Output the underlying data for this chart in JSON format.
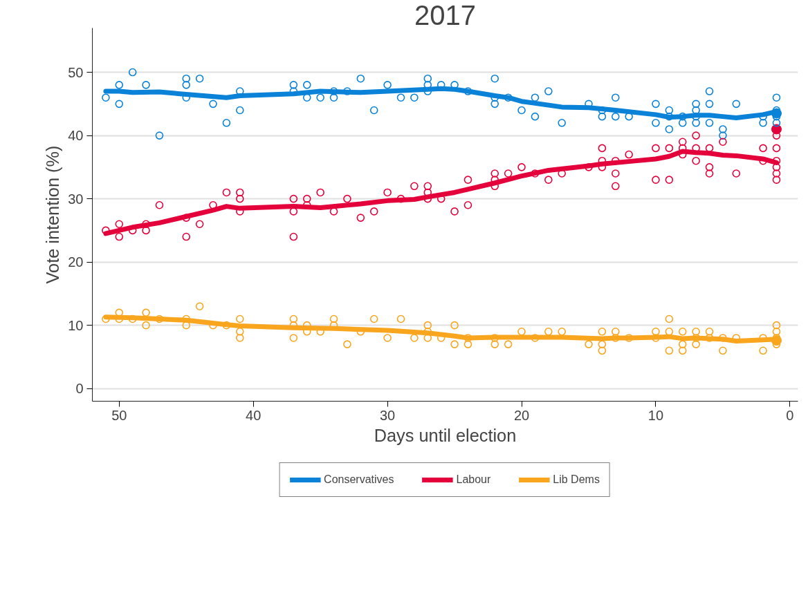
{
  "chart_data": {
    "type": "line",
    "title": "2017",
    "xlabel": "Days until election",
    "ylabel": "Vote intention (%)",
    "xlim": [
      52,
      -0.6
    ],
    "xticks": [
      50,
      40,
      30,
      20,
      10,
      0
    ],
    "ylim": [
      -2,
      57
    ],
    "yticks": [
      0,
      10,
      20,
      30,
      40,
      50
    ],
    "grid": "y",
    "legend": "bottom",
    "marker": "circle",
    "line_style": "solid",
    "series": [
      {
        "name": "Conservatives",
        "color": "#0a82d8",
        "marker": "none",
        "x": [
          51,
          50,
          49,
          47,
          45,
          42,
          41,
          37,
          35,
          32,
          30,
          27,
          26,
          25,
          24,
          22,
          21,
          20,
          17,
          15,
          13,
          10,
          9,
          8,
          7,
          6,
          5,
          4,
          2,
          1
        ],
        "values": [
          47,
          47,
          46.8,
          46.9,
          46.5,
          46,
          46.3,
          46.6,
          47,
          46.8,
          47,
          47.3,
          47.4,
          47.3,
          47,
          46.3,
          46,
          45.4,
          44.5,
          44.4,
          44,
          43.3,
          42.9,
          43,
          43.2,
          43.2,
          43,
          42.8,
          43.3,
          43.8
        ]
      },
      {
        "name": "Labour",
        "color": "#e4003b",
        "marker": "none",
        "x": [
          51,
          49,
          47,
          45,
          43,
          42,
          41,
          37,
          35,
          32,
          30,
          28,
          27,
          25,
          24,
          22,
          20,
          18,
          15,
          14,
          12,
          10,
          9,
          8,
          7,
          6,
          5,
          4,
          2,
          1
        ],
        "values": [
          24.5,
          25.5,
          26.2,
          27.2,
          28.2,
          28.8,
          28.5,
          28.8,
          28.6,
          29.2,
          29.7,
          29.9,
          30.3,
          31,
          31.5,
          32.5,
          33.6,
          34.5,
          35.2,
          35.5,
          35.9,
          36.3,
          36.7,
          37.5,
          37.3,
          37.2,
          36.9,
          36.8,
          36.3,
          35.7
        ]
      },
      {
        "name": "Lib Dems",
        "color": "#f9a51e",
        "marker": "none",
        "x": [
          51,
          49,
          47,
          45,
          42,
          41,
          37,
          34,
          30,
          27,
          25,
          24,
          22,
          20,
          17,
          14,
          13,
          12,
          10,
          9,
          8,
          7,
          6,
          5,
          4,
          2,
          1
        ],
        "values": [
          11.3,
          11.2,
          11,
          10.8,
          10.1,
          9.9,
          9.6,
          9.5,
          9.2,
          8.8,
          8.3,
          8.0,
          8.1,
          8.1,
          8.1,
          7.9,
          8.0,
          8.0,
          8.1,
          8.2,
          7.9,
          8.0,
          7.9,
          7.8,
          7.5,
          7.7,
          7.8
        ]
      },
      {
        "color": "#0a82d8",
        "type": "scatter",
        "x": [
          51,
          50,
          50,
          49,
          48,
          47,
          45,
          45,
          45,
          44,
          43,
          42,
          41,
          41,
          37,
          37,
          36,
          36,
          35,
          34,
          34,
          33,
          32,
          31,
          30,
          29,
          28,
          27,
          27,
          27,
          26,
          25,
          24,
          22,
          22,
          22,
          21,
          20,
          19,
          19,
          18,
          17,
          15,
          14,
          14,
          13,
          13,
          12,
          10,
          10,
          9,
          9,
          9,
          8,
          8,
          7,
          7,
          7,
          7,
          6,
          6,
          6,
          5,
          5,
          4,
          2,
          2,
          1,
          1,
          1,
          1
        ],
        "values": [
          46,
          48,
          45,
          50,
          48,
          40,
          49,
          48,
          46,
          49,
          45,
          42,
          47,
          44,
          48,
          47,
          48,
          46,
          46,
          47,
          46,
          47,
          49,
          44,
          48,
          46,
          46,
          49,
          48,
          47,
          48,
          48,
          47,
          49,
          46,
          45,
          46,
          44,
          46,
          43,
          47,
          42,
          45,
          44,
          43,
          46,
          43,
          43,
          45,
          42,
          44,
          43,
          41,
          43,
          42,
          45,
          44,
          43,
          42,
          47,
          45,
          42,
          41,
          40,
          45,
          43,
          42,
          46,
          44,
          43,
          42
        ]
      },
      {
        "color": "#e4003b",
        "type": "scatter",
        "x": [
          51,
          50,
          50,
          49,
          48,
          48,
          47,
          45,
          45,
          44,
          43,
          42,
          41,
          41,
          41,
          37,
          37,
          37,
          36,
          36,
          35,
          34,
          33,
          32,
          31,
          30,
          29,
          28,
          27,
          27,
          27,
          26,
          25,
          24,
          24,
          22,
          22,
          22,
          21,
          20,
          19,
          18,
          17,
          15,
          14,
          14,
          14,
          13,
          13,
          13,
          12,
          10,
          10,
          9,
          9,
          8,
          8,
          8,
          7,
          7,
          7,
          6,
          6,
          6,
          5,
          4,
          2,
          2,
          1,
          1,
          1,
          1,
          1,
          1
        ],
        "values": [
          25,
          26,
          24,
          25,
          26,
          25,
          29,
          27,
          24,
          26,
          29,
          31,
          31,
          30,
          28,
          30,
          28,
          24,
          30,
          29,
          31,
          28,
          30,
          27,
          28,
          31,
          30,
          32,
          32,
          31,
          30,
          30,
          28,
          33,
          29,
          34,
          33,
          32,
          34,
          35,
          34,
          33,
          34,
          35,
          38,
          36,
          35,
          36,
          34,
          32,
          37,
          38,
          33,
          38,
          33,
          39,
          38,
          37,
          40,
          38,
          36,
          38,
          35,
          34,
          39,
          34,
          38,
          36,
          40,
          38,
          36,
          35,
          34,
          33
        ]
      },
      {
        "color": "#f9a51e",
        "type": "scatter",
        "x": [
          51,
          50,
          50,
          49,
          48,
          48,
          47,
          45,
          45,
          44,
          43,
          42,
          41,
          41,
          41,
          37,
          37,
          37,
          36,
          36,
          35,
          34,
          34,
          33,
          32,
          31,
          30,
          29,
          28,
          27,
          27,
          27,
          26,
          25,
          25,
          24,
          24,
          22,
          22,
          21,
          20,
          19,
          18,
          17,
          15,
          14,
          14,
          14,
          13,
          13,
          12,
          10,
          10,
          9,
          9,
          9,
          8,
          8,
          8,
          7,
          7,
          7,
          6,
          6,
          5,
          5,
          4,
          2,
          2,
          1,
          1,
          1,
          1
        ],
        "values": [
          11,
          12,
          11,
          11,
          12,
          10,
          11,
          11,
          10,
          13,
          10,
          10,
          11,
          9,
          8,
          11,
          10,
          8,
          10,
          9,
          9,
          11,
          10,
          7,
          9,
          11,
          8,
          11,
          8,
          10,
          9,
          8,
          8,
          10,
          7,
          8,
          7,
          8,
          7,
          7,
          9,
          8,
          9,
          9,
          7,
          9,
          7,
          6,
          9,
          8,
          8,
          9,
          8,
          11,
          9,
          6,
          9,
          7,
          6,
          9,
          8,
          7,
          9,
          8,
          8,
          6,
          8,
          8,
          6,
          10,
          9,
          8,
          7
        ]
      },
      {
        "color": "#0a82d8",
        "type": "scatter",
        "marker": "circle",
        "x": [
          1
        ],
        "values": [
          43.5
        ]
      },
      {
        "color": "#e4003b",
        "type": "scatter",
        "marker": "circle",
        "x": [
          1
        ],
        "values": [
          41.0
        ]
      },
      {
        "color": "#f9a51e",
        "type": "scatter",
        "marker": "circle",
        "x": [
          1
        ],
        "values": [
          7.6
        ]
      }
    ]
  }
}
